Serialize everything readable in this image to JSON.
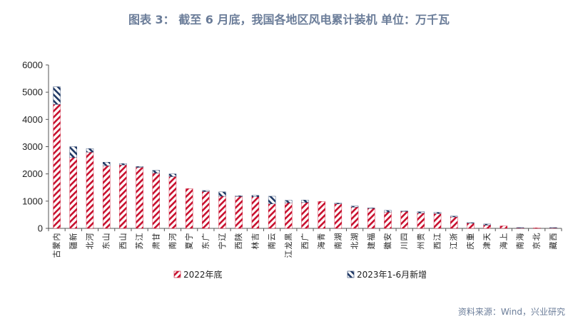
{
  "title": "图表 3： 截至 6 月底，我国各地区风电累计装机  单位：万千瓦",
  "source": "资料来源：Wind，兴业研究",
  "colors": {
    "base": "#c8102e",
    "increment": "#1f3864",
    "title": "#6b7d99"
  },
  "chart_data": {
    "type": "bar",
    "stacked": true,
    "title": "图表 3： 截至 6 月底，我国各地区风电累计装机  单位：万千瓦",
    "ylim": [
      0,
      6000
    ],
    "yticks": [
      0,
      1000,
      2000,
      3000,
      4000,
      5000,
      6000
    ],
    "legend_position": "bottom",
    "categories": [
      "内蒙古",
      "新疆",
      "河北",
      "山东",
      "山西",
      "江苏",
      "甘肃",
      "河南",
      "宁夏",
      "广东",
      "辽宁",
      "陕西",
      "吉林",
      "云南",
      "黑龙江",
      "广西",
      "青海",
      "湖南",
      "湖北",
      "福建",
      "安徽",
      "四川",
      "贵州",
      "江西",
      "浙江",
      "重庆",
      "天津",
      "上海",
      "海南",
      "北京",
      "西藏"
    ],
    "series": [
      {
        "name": "2022年底",
        "pattern": "red-diagonal-hatch",
        "values": [
          4550,
          2600,
          2800,
          2300,
          2330,
          2240,
          2030,
          1900,
          1460,
          1350,
          1180,
          1170,
          1160,
          900,
          940,
          950,
          990,
          900,
          780,
          740,
          600,
          620,
          560,
          540,
          420,
          190,
          120,
          90,
          20,
          20,
          20
        ]
      },
      {
        "name": "2023年1-6月新增",
        "pattern": "navy-diagonal-hatch",
        "values": [
          650,
          400,
          130,
          130,
          50,
          30,
          100,
          100,
          0,
          40,
          160,
          30,
          50,
          280,
          90,
          90,
          0,
          30,
          40,
          10,
          60,
          20,
          50,
          50,
          30,
          20,
          40,
          0,
          10,
          0,
          10
        ]
      }
    ]
  }
}
